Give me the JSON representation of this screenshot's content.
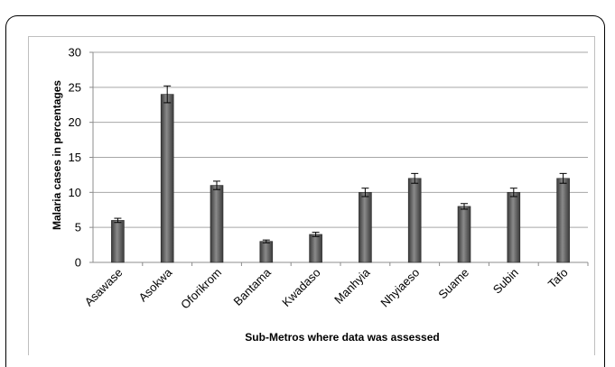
{
  "chart_data": {
    "type": "bar",
    "title": "",
    "xlabel": "Sub-Metros where  data was assessed",
    "ylabel": "Malaria cases in percentages",
    "categories": [
      "Asawase",
      "Asokwa",
      "Oforikrom",
      "Bantama",
      "Kwadaso",
      "Manhyia",
      "Nhyiaeso",
      "Suame",
      "Subin",
      "Tafo"
    ],
    "values": [
      6,
      24,
      11,
      3,
      4,
      10,
      12,
      8,
      10,
      12
    ],
    "error_bars": [
      0.3,
      1.2,
      0.6,
      0.2,
      0.3,
      0.6,
      0.7,
      0.4,
      0.6,
      0.7
    ],
    "ylim": [
      0,
      30
    ],
    "yticks": [
      0,
      5,
      10,
      15,
      20,
      25,
      30
    ],
    "grid": true,
    "legend": "none",
    "colors": {
      "bar": "#555555",
      "bar_highlight": "#8a8a8a",
      "grid": "#a6a6a6"
    }
  }
}
